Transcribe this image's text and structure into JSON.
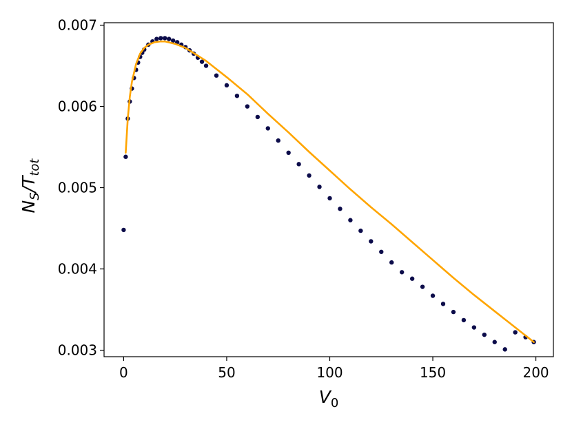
{
  "chart_data": {
    "type": "scatter",
    "title": "",
    "xlabel": {
      "main": "V",
      "sub": "0"
    },
    "ylabel": {
      "main": "N",
      "sub1": "S",
      "mid": "/T",
      "sub2": "tot"
    },
    "xlim": [
      -9.5,
      208.5
    ],
    "ylim": [
      0.00292,
      0.00703
    ],
    "xticks": [
      0,
      50,
      100,
      150,
      200
    ],
    "xtick_labels": [
      "0",
      "50",
      "100",
      "150",
      "200"
    ],
    "yticks": [
      0.003,
      0.004,
      0.005,
      0.006,
      0.007
    ],
    "ytick_labels": [
      "0.003",
      "0.004",
      "0.005",
      "0.006",
      "0.007"
    ],
    "grid": false,
    "legend": "none",
    "series": [
      {
        "kind": "scatter",
        "color": "#0c0c4a",
        "x": [
          0,
          1,
          2,
          3,
          4,
          5,
          6,
          7,
          8,
          9,
          10,
          12,
          14,
          16,
          18,
          20,
          22,
          24,
          26,
          28,
          30,
          32,
          34,
          36,
          38,
          40,
          45,
          50,
          55,
          60,
          65,
          70,
          75,
          80,
          85,
          90,
          95,
          100,
          105,
          110,
          115,
          120,
          125,
          130,
          135,
          140,
          145,
          150,
          155,
          160,
          165,
          170,
          175,
          180,
          185,
          190,
          195,
          199
        ],
        "y": [
          0.00448,
          0.00538,
          0.00585,
          0.00606,
          0.00622,
          0.00635,
          0.00645,
          0.00654,
          0.00661,
          0.00666,
          0.0067,
          0.00676,
          0.0068,
          0.00683,
          0.00684,
          0.00684,
          0.00683,
          0.00681,
          0.00679,
          0.00676,
          0.00673,
          0.00669,
          0.00665,
          0.0066,
          0.00655,
          0.0065,
          0.00638,
          0.00626,
          0.00613,
          0.006,
          0.00587,
          0.00573,
          0.00558,
          0.00543,
          0.00529,
          0.00515,
          0.00501,
          0.00487,
          0.00474,
          0.0046,
          0.00447,
          0.00434,
          0.00421,
          0.00408,
          0.00396,
          0.00388,
          0.00378,
          0.00367,
          0.00357,
          0.00347,
          0.00337,
          0.00328,
          0.00319,
          0.0031,
          0.00301,
          0.00322,
          0.00316,
          0.0031
        ]
      },
      {
        "kind": "line",
        "color": "#ffa500",
        "x": [
          1,
          2,
          3,
          4,
          6,
          8,
          10,
          12,
          15,
          18,
          20,
          25,
          30,
          35,
          40,
          50,
          60,
          70,
          80,
          90,
          100,
          110,
          120,
          130,
          140,
          150,
          160,
          170,
          180,
          190,
          199
        ],
        "y": [
          0.00543,
          0.00585,
          0.00612,
          0.0063,
          0.00652,
          0.00665,
          0.00672,
          0.00676,
          0.00679,
          0.0068,
          0.0068,
          0.00677,
          0.00672,
          0.00664,
          0.00656,
          0.00636,
          0.00615,
          0.00591,
          0.00568,
          0.00544,
          0.00521,
          0.00498,
          0.00476,
          0.00455,
          0.00433,
          0.00411,
          0.00389,
          0.00368,
          0.00348,
          0.00328,
          0.0031
        ]
      }
    ]
  }
}
